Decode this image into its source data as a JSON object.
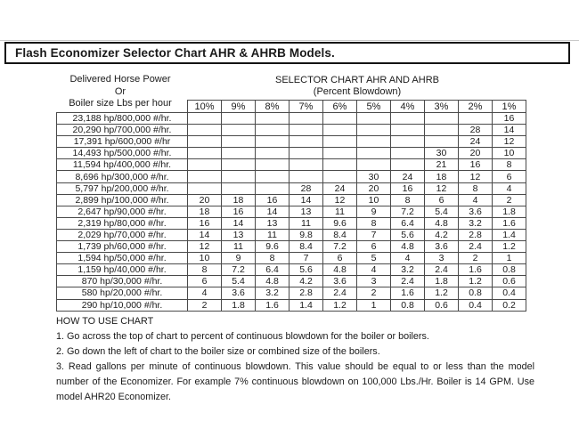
{
  "title": "Flash Economizer Selector Chart AHR & AHRB Models.",
  "left_header": {
    "line1": "Delivered Horse Power",
    "line2": "Or",
    "line3": "Boiler size Lbs per hour"
  },
  "right_header": {
    "line1": "SELECTOR CHART AHR AND AHRB",
    "line2": "(Percent Blowdown)"
  },
  "chart_data": {
    "type": "table",
    "columns": [
      "10%",
      "9%",
      "8%",
      "7%",
      "6%",
      "5%",
      "4%",
      "3%",
      "2%",
      "1%"
    ],
    "rows": [
      {
        "label": "23,188 hp/800,000 #/hr.",
        "values": [
          "",
          "",
          "",
          "",
          "",
          "",
          "",
          "",
          "",
          "16"
        ]
      },
      {
        "label": "20,290 hp/700,000 #/hr.",
        "values": [
          "",
          "",
          "",
          "",
          "",
          "",
          "",
          "",
          "28",
          "14"
        ]
      },
      {
        "label": "17,391 hp/600,000 #/hr",
        "values": [
          "",
          "",
          "",
          "",
          "",
          "",
          "",
          "",
          "24",
          "12"
        ]
      },
      {
        "label": "14,493 hp/500,000 #/hr.",
        "values": [
          "",
          "",
          "",
          "",
          "",
          "",
          "",
          "30",
          "20",
          "10"
        ]
      },
      {
        "label": "11,594 hp/400,000 #/hr.",
        "values": [
          "",
          "",
          "",
          "",
          "",
          "",
          "",
          "21",
          "16",
          "8"
        ]
      },
      {
        "label": "8,696 hp/300,000 #/hr.",
        "values": [
          "",
          "",
          "",
          "",
          "",
          "30",
          "24",
          "18",
          "12",
          "6"
        ]
      },
      {
        "label": "5,797 hp/200,000 #/hr.",
        "values": [
          "",
          "",
          "",
          "28",
          "24",
          "20",
          "16",
          "12",
          "8",
          "4"
        ]
      },
      {
        "label": "2,899 hp/100,000 #/hr.",
        "values": [
          "20",
          "18",
          "16",
          "14",
          "12",
          "10",
          "8",
          "6",
          "4",
          "2"
        ]
      },
      {
        "label": "2,647 hp/90,000 #/hr.",
        "values": [
          "18",
          "16",
          "14",
          "13",
          "11",
          "9",
          "7.2",
          "5.4",
          "3.6",
          "1.8"
        ]
      },
      {
        "label": "2,319 hp/80,000 #/hr.",
        "values": [
          "16",
          "14",
          "13",
          "11",
          "9.6",
          "8",
          "6.4",
          "4.8",
          "3.2",
          "1.6"
        ]
      },
      {
        "label": "2,029 hp/70,000 #/hr.",
        "values": [
          "14",
          "13",
          "11",
          "9.8",
          "8.4",
          "7",
          "5.6",
          "4.2",
          "2.8",
          "1.4"
        ]
      },
      {
        "label": "1,739 ph/60,000 #/hr.",
        "values": [
          "12",
          "11",
          "9.6",
          "8.4",
          "7.2",
          "6",
          "4.8",
          "3.6",
          "2.4",
          "1.2"
        ]
      },
      {
        "label": "1,594 hp/50,000 #/hr.",
        "values": [
          "10",
          "9",
          "8",
          "7",
          "6",
          "5",
          "4",
          "3",
          "2",
          "1"
        ]
      },
      {
        "label": "1,159 hp/40,000 #/hr.",
        "values": [
          "8",
          "7.2",
          "6.4",
          "5.6",
          "4.8",
          "4",
          "3.2",
          "2.4",
          "1.6",
          "0.8"
        ]
      },
      {
        "label": "870 hp/30,000 #/hr.",
        "values": [
          "6",
          "5.4",
          "4.8",
          "4.2",
          "3.6",
          "3",
          "2.4",
          "1.8",
          "1.2",
          "0.6"
        ]
      },
      {
        "label": "580 hp/20,000 #/hr.",
        "values": [
          "4",
          "3.6",
          "3.2",
          "2.8",
          "2.4",
          "2",
          "1.6",
          "1.2",
          "0.8",
          "0.4"
        ]
      },
      {
        "label": "290 hp/10,000 #/hr.",
        "values": [
          "2",
          "1.8",
          "1.6",
          "1.4",
          "1.2",
          "1",
          "0.8",
          "0.6",
          "0.4",
          "0.2"
        ]
      }
    ]
  },
  "footer": {
    "heading": "HOW TO USE CHART",
    "steps": [
      "1. Go across the top of chart to percent of continuous blowdown for the boiler or boilers.",
      "2. Go down the left of chart to the boiler size or combined size of the boilers.",
      "3. Read gallons per minute of continuous blowdown. This value should be equal to or less than the model number of the Economizer. For example 7% continuous blowdown on 100,000 Lbs./Hr. Boiler is 14 GPM. Use model AHR20 Economizer."
    ]
  }
}
